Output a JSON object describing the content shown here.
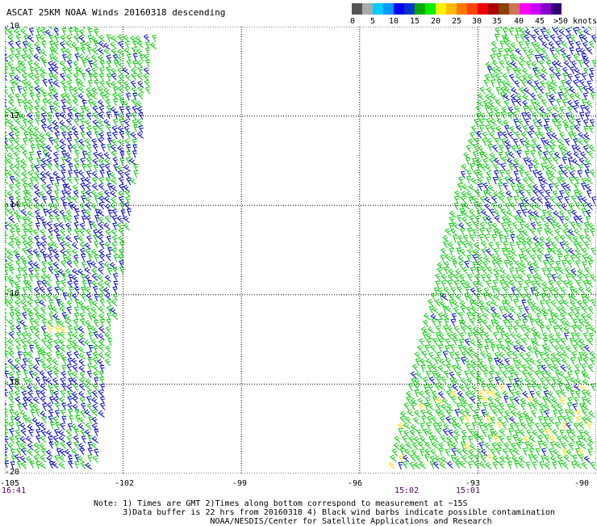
{
  "title": "ASCAT 25KM NOAA Winds 20160318 descending",
  "colorbar": {
    "colors": [
      "#555555",
      "#aaaaaa",
      "#00ccff",
      "#0099ff",
      "#0000ee",
      "#0033cc",
      "#00aa00",
      "#00ee00",
      "#ffee00",
      "#ffbb00",
      "#ff7700",
      "#ff4400",
      "#ee0000",
      "#aa0000",
      "#884400",
      "#cc7755",
      "#ff00ff",
      "#cc00ff",
      "#8800cc",
      "#330077"
    ],
    "labels": [
      "0",
      "5",
      "10",
      "15",
      "20",
      "25",
      "30",
      "35",
      "40",
      "45",
      ">50 knots"
    ]
  },
  "axes": {
    "lat_labels": [
      "-10",
      "-12",
      "-14",
      "-16",
      "-18",
      "-20"
    ],
    "lon_labels": [
      "-105",
      "-102",
      "-99",
      "-96",
      "-93",
      "-90"
    ],
    "lat_range": [
      -10,
      -20
    ],
    "lon_range": [
      -105,
      -90
    ]
  },
  "time_labels": [
    "16:41",
    "15:02",
    "15:01"
  ],
  "swaths": {
    "west": {
      "speed_mix": [
        "green",
        "green",
        "green",
        "blue"
      ],
      "colors": {
        "green": "#00cc00",
        "blue": "#0000cc",
        "yellow": "#ffdd00"
      }
    },
    "east": {
      "speed_mix": [
        "green",
        "green",
        "green",
        "blue"
      ]
    }
  },
  "notes": {
    "line1": "Note: 1) Times are GMT 2)Times along bottom correspond to measurement at ~15S",
    "line2": "      3)Data buffer is 22 hrs from 20160318 4) Black wind barbs indicate possible contamination",
    "line3": "                        NOAA/NESDIS/Center for Satellite Applications and Research"
  }
}
